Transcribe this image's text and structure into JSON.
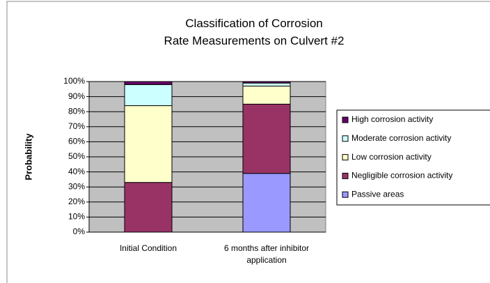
{
  "chart_data": {
    "type": "bar",
    "stacked": true,
    "title": "Classification of Corrosion Rate Measurements on Culvert #2",
    "y_label": "Probability",
    "categories": [
      "Initial Condition",
      "6 months after inhibitor application"
    ],
    "series": [
      {
        "name": "Passive areas",
        "color": "#9999ff",
        "values": [
          0,
          39
        ]
      },
      {
        "name": "Negligible corrosion activity",
        "color": "#993366",
        "values": [
          33,
          46
        ]
      },
      {
        "name": "Low corrosion activity",
        "color": "#ffffcc",
        "values": [
          51,
          12
        ]
      },
      {
        "name": "Moderate corrosion activity",
        "color": "#ccffff",
        "values": [
          14,
          2
        ]
      },
      {
        "name": "High corrosion activity",
        "color": "#660066",
        "values": [
          2,
          1
        ]
      }
    ],
    "ylim": [
      0,
      100
    ],
    "yticks": [
      {
        "value": 0,
        "label": "0%"
      },
      {
        "value": 10,
        "label": "10%"
      },
      {
        "value": 20,
        "label": "20%"
      },
      {
        "value": 30,
        "label": "30%"
      },
      {
        "value": 40,
        "label": "40%"
      },
      {
        "value": 50,
        "label": "50%"
      },
      {
        "value": 60,
        "label": "60%"
      },
      {
        "value": 70,
        "label": "70%"
      },
      {
        "value": 80,
        "label": "80%"
      },
      {
        "value": 90,
        "label": "90%"
      },
      {
        "value": 100,
        "label": "100%"
      }
    ],
    "grid": true,
    "legend": "right",
    "plot_background": "#c0c0c0"
  }
}
